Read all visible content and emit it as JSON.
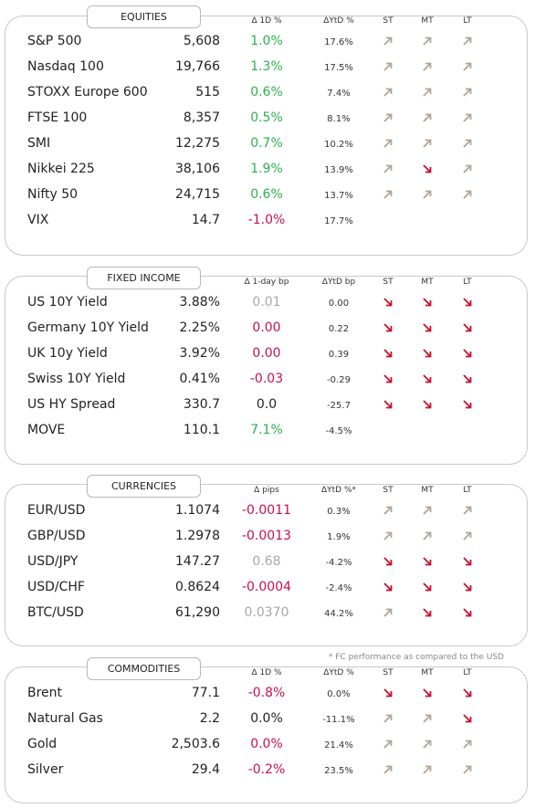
{
  "sections": [
    {
      "title": "EQUITIES",
      "headers": [
        "Δ 1D %",
        "ΔYtD %",
        "ST",
        "MT",
        "LT"
      ],
      "rows": [
        {
          "name": "S&P 500",
          "value": "5,608",
          "change": "1.0%",
          "tone": "pos",
          "ytd": "17.6%",
          "st": "up",
          "mt": "up",
          "lt": "up"
        },
        {
          "name": "Nasdaq 100",
          "value": "19,766",
          "change": "1.3%",
          "tone": "pos",
          "ytd": "17.5%",
          "st": "up",
          "mt": "up",
          "lt": "up"
        },
        {
          "name": "STOXX Europe 600",
          "value": "515",
          "change": "0.6%",
          "tone": "pos",
          "ytd": "7.4%",
          "st": "up",
          "mt": "up",
          "lt": "up"
        },
        {
          "name": "FTSE 100",
          "value": "8,357",
          "change": "0.5%",
          "tone": "pos",
          "ytd": "8.1%",
          "st": "up",
          "mt": "up",
          "lt": "up"
        },
        {
          "name": "SMI",
          "value": "12,275",
          "change": "0.7%",
          "tone": "pos",
          "ytd": "10.2%",
          "st": "up",
          "mt": "up",
          "lt": "up"
        },
        {
          "name": "Nikkei 225",
          "value": "38,106",
          "change": "1.9%",
          "tone": "pos",
          "ytd": "13.9%",
          "st": "up",
          "mt": "down",
          "lt": "up"
        },
        {
          "name": "Nifty  50",
          "value": "24,715",
          "change": "0.6%",
          "tone": "pos",
          "ytd": "13.7%",
          "st": "up",
          "mt": "up",
          "lt": "up"
        },
        {
          "name": "VIX",
          "value": "14.7",
          "change": "-1.0%",
          "tone": "neg",
          "ytd": "17.7%",
          "st": null,
          "mt": null,
          "lt": null
        }
      ]
    },
    {
      "title": "FIXED INCOME",
      "headers": [
        "Δ 1-day bp",
        "ΔYtD bp",
        "ST",
        "MT",
        "LT"
      ],
      "rows": [
        {
          "name": "US 10Y Yield",
          "value": "3.88%",
          "change": "0.01",
          "tone": "flat",
          "ytd": "0.00",
          "st": "down",
          "mt": "down",
          "lt": "down"
        },
        {
          "name": "Germany 10Y Yield",
          "value": "2.25%",
          "change": "0.00",
          "tone": "neg",
          "ytd": "0.22",
          "st": "down",
          "mt": "down",
          "lt": "down"
        },
        {
          "name": "UK 10y Yield",
          "value": "3.92%",
          "change": "0.00",
          "tone": "neg",
          "ytd": "0.39",
          "st": "down",
          "mt": "down",
          "lt": "down"
        },
        {
          "name": "Swiss 10Y Yield",
          "value": "0.41%",
          "change": "-0.03",
          "tone": "neg",
          "ytd": "-0.29",
          "st": "down",
          "mt": "down",
          "lt": "down"
        },
        {
          "name": "US HY Spread",
          "value": "330.7",
          "change": "0.0",
          "tone": "plain",
          "ytd": "-25.7",
          "st": "down",
          "mt": "down",
          "lt": "down"
        },
        {
          "name": "MOVE",
          "value": "110.1",
          "change": "7.1%",
          "tone": "pos",
          "ytd": "-4.5%",
          "st": null,
          "mt": null,
          "lt": null
        }
      ]
    },
    {
      "title": "CURRENCIES",
      "headers": [
        "Δ pips",
        "ΔYtD %*",
        "ST",
        "MT",
        "LT"
      ],
      "rows": [
        {
          "name": "EUR/USD",
          "value": "1.1074",
          "change": "-0.0011",
          "tone": "neg",
          "ytd": "0.3%",
          "st": "up",
          "mt": "up",
          "lt": "up"
        },
        {
          "name": "GBP/USD",
          "value": "1.2978",
          "change": "-0.0013",
          "tone": "neg",
          "ytd": "1.9%",
          "st": "up",
          "mt": "up",
          "lt": "up"
        },
        {
          "name": "USD/JPY",
          "value": "147.27",
          "change": "0.68",
          "tone": "flat",
          "ytd": "-4.2%",
          "st": "down",
          "mt": "down",
          "lt": "down"
        },
        {
          "name": "USD/CHF",
          "value": "0.8624",
          "change": "-0.0004",
          "tone": "neg",
          "ytd": "-2.4%",
          "st": "down",
          "mt": "down",
          "lt": "down"
        },
        {
          "name": "BTC/USD",
          "value": "61,290",
          "change": "0.0370",
          "tone": "flat",
          "ytd": "44.2%",
          "st": "up",
          "mt": "down",
          "lt": "down"
        }
      ],
      "footnote": "* FC performance as compared to the USD"
    },
    {
      "title": "COMMODITIES",
      "headers": [
        "Δ 1D %",
        "ΔYtD %",
        "ST",
        "MT",
        "LT"
      ],
      "rows": [
        {
          "name": "Brent",
          "value": "77.1",
          "change": "-0.8%",
          "tone": "neg",
          "ytd": "0.0%",
          "st": "down",
          "mt": "down",
          "lt": "down"
        },
        {
          "name": "Natural Gas",
          "value": "2.2",
          "change": "0.0%",
          "tone": "plain",
          "ytd": "-11.1%",
          "st": "up",
          "mt": "up",
          "lt": "down"
        },
        {
          "name": "Gold",
          "value": "2,503.6",
          "change": "0.0%",
          "tone": "neg",
          "ytd": "21.4%",
          "st": "up",
          "mt": "up",
          "lt": "up"
        },
        {
          "name": "Silver",
          "value": "29.4",
          "change": "-0.2%",
          "tone": "neg",
          "ytd": "23.5%",
          "st": "up",
          "mt": "up",
          "lt": "up"
        }
      ]
    }
  ]
}
